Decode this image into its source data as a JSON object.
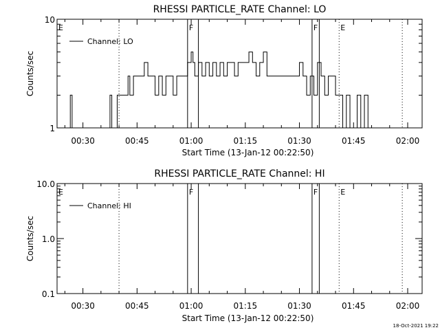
{
  "footer": {
    "timestamp": "18-Oct-2021 19:22"
  },
  "chart_data": [
    {
      "type": "line",
      "title": "RHESSI PARTICLE_RATE Channel: LO",
      "xlabel": "Start Time (13-Jan-12 00:22:50)",
      "ylabel": "Counts/sec",
      "xlim": [
        "00:22:50",
        "02:04:00"
      ],
      "xticks": [
        "00:30",
        "00:45",
        "01:00",
        "01:15",
        "01:30",
        "01:45",
        "02:00"
      ],
      "yscale": "log",
      "ylim": [
        1,
        10
      ],
      "yticks": [
        "1",
        "10"
      ],
      "legend": {
        "position": "top-left",
        "entries": [
          "Channel: LO"
        ]
      },
      "series": [
        {
          "name": "Channel: LO",
          "x": [
            "00:26:00",
            "00:26:30",
            "00:27:00",
            "00:37:00",
            "00:37:30",
            "00:38:00",
            "00:39:30",
            "00:40:00",
            "00:41:00",
            "00:42:30",
            "00:43:00",
            "00:44:00",
            "00:45:00",
            "00:47:00",
            "00:48:00",
            "00:49:00",
            "00:50:00",
            "00:51:00",
            "00:52:00",
            "00:53:00",
            "00:54:00",
            "00:55:00",
            "00:56:00",
            "00:57:00",
            "00:58:00",
            "00:59:00",
            "01:00:00",
            "01:00:30",
            "01:01:00",
            "01:02:00",
            "01:03:00",
            "01:04:00",
            "01:05:00",
            "01:06:00",
            "01:07:00",
            "01:08:00",
            "01:09:00",
            "01:10:00",
            "01:11:00",
            "01:12:00",
            "01:13:00",
            "01:14:00",
            "01:15:00",
            "01:16:00",
            "01:17:00",
            "01:18:00",
            "01:19:00",
            "01:20:00",
            "01:21:00",
            "01:22:00",
            "01:24:00",
            "01:26:00",
            "01:27:00",
            "01:28:00",
            "01:29:00",
            "01:30:00",
            "01:31:00",
            "01:32:00",
            "01:33:00",
            "01:34:00",
            "01:35:00",
            "01:36:00",
            "01:37:00",
            "01:38:00",
            "01:39:00",
            "01:40:00",
            "01:41:00",
            "01:42:00",
            "01:43:00",
            "01:44:00",
            "01:45:00",
            "01:46:00",
            "01:47:00",
            "01:48:00",
            "01:49:00",
            "01:50:00"
          ],
          "values": [
            1,
            2,
            1,
            1,
            2,
            1,
            2,
            2,
            2,
            3,
            2,
            3,
            3,
            4,
            3,
            3,
            2,
            3,
            2,
            3,
            3,
            2,
            3,
            3,
            3,
            4,
            5,
            4,
            3,
            4,
            3,
            4,
            3,
            4,
            3,
            4,
            3,
            4,
            4,
            3,
            4,
            4,
            4,
            5,
            4,
            3,
            4,
            5,
            3,
            3,
            3,
            3,
            3,
            3,
            3,
            4,
            3,
            2,
            3,
            2,
            4,
            3,
            2,
            3,
            3,
            2,
            2,
            1,
            2,
            1,
            1,
            2,
            1,
            2,
            1,
            1
          ]
        }
      ],
      "markers": {
        "solid": [
          "00:59:00",
          "01:02:00",
          "01:33:30",
          "01:35:30"
        ],
        "dotted": [
          "00:40:00",
          "01:41:00",
          "01:58:30"
        ],
        "labels": [
          {
            "text": "E",
            "at": "00:22:50"
          },
          {
            "text": "F",
            "at": "00:59:00"
          },
          {
            "text": "F",
            "at": "01:33:30"
          },
          {
            "text": "E",
            "at": "01:41:00"
          }
        ]
      }
    },
    {
      "type": "line",
      "title": "RHESSI PARTICLE_RATE Channel: HI",
      "xlabel": "Start Time (13-Jan-12 00:22:50)",
      "ylabel": "Counts/sec",
      "xlim": [
        "00:22:50",
        "02:04:00"
      ],
      "xticks": [
        "00:30",
        "00:45",
        "01:00",
        "01:15",
        "01:30",
        "01:45",
        "02:00"
      ],
      "yscale": "log",
      "ylim": [
        0.1,
        10
      ],
      "yticks": [
        "0.1",
        "1.0",
        "10.0"
      ],
      "legend": {
        "position": "top-left",
        "entries": [
          "Channel: HI"
        ]
      },
      "series": [
        {
          "name": "Channel: HI",
          "x": [],
          "values": []
        }
      ],
      "markers": {
        "solid": [
          "00:59:00",
          "01:02:00",
          "01:33:30",
          "01:35:30"
        ],
        "dotted": [
          "00:40:00",
          "01:41:00",
          "01:58:30"
        ],
        "labels": [
          {
            "text": "E",
            "at": "00:22:50"
          },
          {
            "text": "F",
            "at": "00:59:00"
          },
          {
            "text": "F",
            "at": "01:33:30"
          },
          {
            "text": "E",
            "at": "01:41:00"
          }
        ]
      }
    }
  ]
}
